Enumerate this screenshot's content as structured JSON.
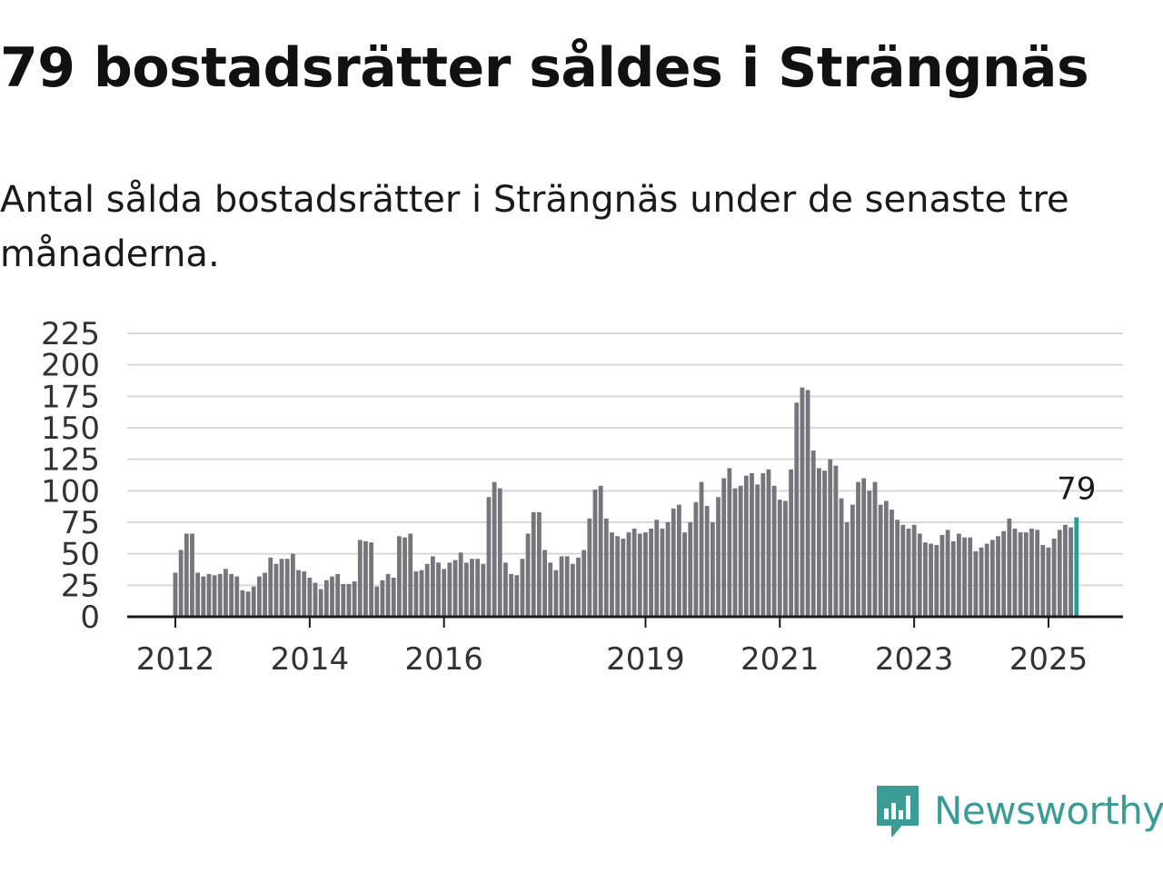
{
  "title": "79 bostadsrätter såldes i Strängnäs",
  "subtitle": "Antal sålda bostadsrätter i Strängnäs under de senaste tre månaderna.",
  "brand": {
    "name": "Newsworthy",
    "icon": "newsworthy-logo-icon",
    "color": "#3a9c95"
  },
  "chart_data": {
    "type": "bar",
    "title": "",
    "xlabel": "",
    "ylabel": "",
    "ylim": [
      0,
      225
    ],
    "yticks": [
      0,
      25,
      50,
      75,
      100,
      125,
      150,
      175,
      200,
      225
    ],
    "xticks": [
      "2012",
      "2014",
      "2016",
      "2019",
      "2021",
      "2023",
      "2025"
    ],
    "grid": true,
    "bar_color": "#76757b",
    "highlight_color": "#2a9d96",
    "highlight_label": "79",
    "series": [
      {
        "start": "2012-01",
        "values": [
          35,
          53,
          66,
          66,
          35,
          32,
          34,
          33,
          34,
          38,
          34,
          32,
          21,
          20,
          24,
          32,
          35,
          47,
          42,
          46,
          46,
          50,
          37,
          36,
          31,
          27,
          22,
          29,
          32,
          34,
          26,
          26,
          28,
          61,
          60,
          59,
          24,
          29,
          34,
          31,
          64,
          63,
          66,
          36,
          37,
          42,
          48,
          43,
          38,
          43,
          45,
          51,
          43,
          46,
          46,
          42,
          95,
          107,
          102,
          43,
          34,
          33,
          46,
          66,
          83,
          83,
          53,
          43,
          37,
          48,
          48,
          42,
          47,
          53,
          78,
          101,
          104,
          78,
          67,
          64,
          62,
          67,
          70,
          66,
          67,
          70,
          77,
          70,
          75,
          86,
          89,
          67,
          75,
          91,
          107,
          88,
          75,
          95,
          110,
          118,
          102,
          104,
          112,
          114,
          105,
          114,
          117,
          104,
          93,
          92,
          117,
          170,
          182,
          180,
          132,
          118,
          116,
          125,
          120,
          94,
          75,
          89,
          107,
          110,
          100,
          107,
          89,
          92,
          85,
          77,
          73,
          70,
          73,
          66,
          59,
          58,
          57,
          65,
          69,
          60,
          66,
          63,
          63,
          52,
          55,
          58,
          61,
          64,
          68,
          78,
          70,
          67,
          67,
          70,
          69,
          57,
          55,
          62,
          69,
          73,
          71,
          79
        ]
      }
    ]
  }
}
